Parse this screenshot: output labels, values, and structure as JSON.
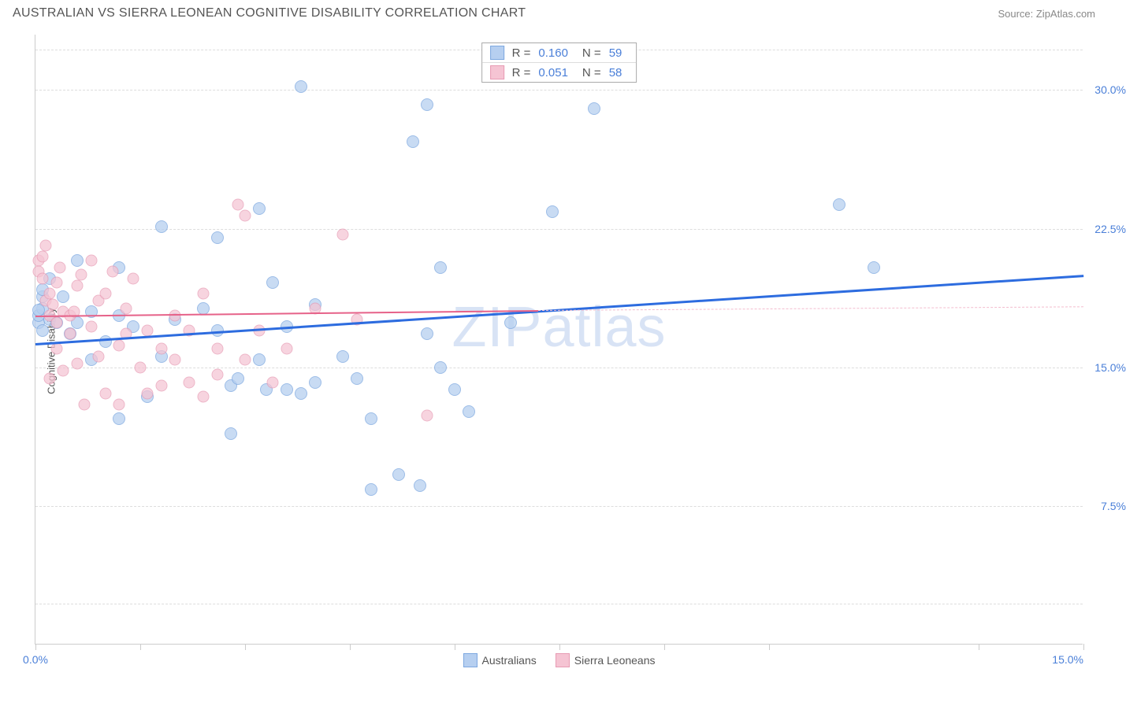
{
  "title": "AUSTRALIAN VS SIERRA LEONEAN COGNITIVE DISABILITY CORRELATION CHART",
  "source": "Source: ZipAtlas.com",
  "watermark": "ZIPatlas",
  "ylabel": "Cognitive Disability",
  "chart": {
    "type": "scatter",
    "background_color": "#ffffff",
    "grid_color": "#dddddd",
    "axis_color": "#cccccc",
    "xlim": [
      0,
      15
    ],
    "ylim": [
      0,
      33
    ],
    "xticks": [
      0,
      1.5,
      3,
      4.5,
      6,
      7.5,
      9,
      10.5,
      13.5,
      15
    ],
    "xlabels": [
      {
        "x": 0,
        "text": "0.0%"
      },
      {
        "x": 15,
        "text": "15.0%"
      }
    ],
    "yticks": [
      {
        "y": 7.5,
        "text": "7.5%"
      },
      {
        "y": 15.0,
        "text": "15.0%"
      },
      {
        "y": 22.5,
        "text": "22.5%"
      },
      {
        "y": 30.0,
        "text": "30.0%"
      }
    ],
    "gridlines_y": [
      2.2,
      7.5,
      15.0,
      22.5,
      30.0,
      32.2
    ],
    "series": [
      {
        "name": "Australians",
        "marker_fill": "#b6cff0",
        "marker_stroke": "#7da8e0",
        "marker_opacity": 0.75,
        "marker_size": 16,
        "trend": {
          "x1": 0,
          "y1": 16.3,
          "x2": 15,
          "y2": 20.0,
          "color": "#2d6cdf",
          "width": 2.5
        },
        "stats": {
          "R": "0.160",
          "N": "59"
        },
        "points": [
          [
            0.05,
            17.4
          ],
          [
            0.05,
            17.8
          ],
          [
            0.1,
            18.2
          ],
          [
            0.1,
            17.0
          ],
          [
            0.1,
            18.8
          ],
          [
            0.1,
            19.2
          ],
          [
            0.2,
            17.6
          ],
          [
            0.2,
            19.8
          ],
          [
            0.3,
            17.4
          ],
          [
            0.4,
            18.8
          ],
          [
            0.5,
            16.8
          ],
          [
            0.6,
            17.4
          ],
          [
            0.6,
            20.8
          ],
          [
            0.8,
            18.0
          ],
          [
            0.8,
            15.4
          ],
          [
            1.0,
            16.4
          ],
          [
            1.2,
            17.8
          ],
          [
            1.2,
            20.4
          ],
          [
            1.2,
            12.2
          ],
          [
            1.4,
            17.2
          ],
          [
            1.6,
            13.4
          ],
          [
            1.8,
            22.6
          ],
          [
            1.8,
            15.6
          ],
          [
            2.0,
            17.6
          ],
          [
            2.4,
            18.2
          ],
          [
            2.6,
            22.0
          ],
          [
            2.6,
            17.0
          ],
          [
            2.8,
            11.4
          ],
          [
            2.8,
            14.0
          ],
          [
            2.9,
            14.4
          ],
          [
            3.2,
            23.6
          ],
          [
            3.2,
            15.4
          ],
          [
            3.3,
            13.8
          ],
          [
            3.4,
            19.6
          ],
          [
            3.6,
            17.2
          ],
          [
            3.6,
            13.8
          ],
          [
            3.8,
            30.2
          ],
          [
            3.8,
            13.6
          ],
          [
            4.0,
            14.2
          ],
          [
            4.0,
            18.4
          ],
          [
            4.4,
            15.6
          ],
          [
            4.6,
            14.4
          ],
          [
            4.8,
            8.4
          ],
          [
            4.8,
            12.2
          ],
          [
            5.2,
            9.2
          ],
          [
            5.4,
            27.2
          ],
          [
            5.5,
            8.6
          ],
          [
            5.6,
            29.2
          ],
          [
            5.6,
            16.8
          ],
          [
            5.8,
            15.0
          ],
          [
            5.8,
            20.4
          ],
          [
            6.0,
            13.8
          ],
          [
            6.2,
            12.6
          ],
          [
            6.8,
            17.4
          ],
          [
            7.4,
            23.4
          ],
          [
            8.0,
            29.0
          ],
          [
            11.5,
            23.8
          ],
          [
            12.0,
            20.4
          ],
          [
            0.05,
            18.1
          ]
        ]
      },
      {
        "name": "Sierra Leoneans",
        "marker_fill": "#f5c4d3",
        "marker_stroke": "#e79bb4",
        "marker_opacity": 0.72,
        "marker_size": 15,
        "trend": {
          "x1": 0,
          "y1": 17.8,
          "x2": 7.2,
          "y2": 18.1,
          "color": "#e66289",
          "width": 2,
          "dash_x2": 15,
          "dash_y2": 18.3,
          "dash_color": "#f3bcce"
        },
        "stats": {
          "R": "0.051",
          "N": "58"
        },
        "points": [
          [
            0.05,
            20.8
          ],
          [
            0.05,
            20.2
          ],
          [
            0.1,
            21.0
          ],
          [
            0.1,
            19.8
          ],
          [
            0.15,
            21.6
          ],
          [
            0.15,
            18.6
          ],
          [
            0.2,
            17.8
          ],
          [
            0.2,
            19.0
          ],
          [
            0.2,
            14.4
          ],
          [
            0.25,
            18.4
          ],
          [
            0.3,
            16.0
          ],
          [
            0.3,
            19.6
          ],
          [
            0.35,
            20.4
          ],
          [
            0.4,
            18.0
          ],
          [
            0.4,
            14.8
          ],
          [
            0.5,
            17.8
          ],
          [
            0.5,
            16.8
          ],
          [
            0.55,
            18.0
          ],
          [
            0.6,
            19.4
          ],
          [
            0.6,
            15.2
          ],
          [
            0.65,
            20.0
          ],
          [
            0.7,
            13.0
          ],
          [
            0.8,
            20.8
          ],
          [
            0.8,
            17.2
          ],
          [
            0.9,
            18.6
          ],
          [
            0.9,
            15.6
          ],
          [
            1.0,
            13.6
          ],
          [
            1.0,
            19.0
          ],
          [
            1.1,
            20.2
          ],
          [
            1.2,
            16.2
          ],
          [
            1.2,
            13.0
          ],
          [
            1.3,
            16.8
          ],
          [
            1.3,
            18.2
          ],
          [
            1.4,
            19.8
          ],
          [
            1.5,
            15.0
          ],
          [
            1.6,
            17.0
          ],
          [
            1.6,
            13.6
          ],
          [
            1.8,
            16.0
          ],
          [
            1.8,
            14.0
          ],
          [
            2.0,
            17.8
          ],
          [
            2.0,
            15.4
          ],
          [
            2.2,
            17.0
          ],
          [
            2.2,
            14.2
          ],
          [
            2.4,
            13.4
          ],
          [
            2.4,
            19.0
          ],
          [
            2.6,
            14.6
          ],
          [
            2.6,
            16.0
          ],
          [
            2.9,
            23.8
          ],
          [
            3.0,
            23.2
          ],
          [
            3.0,
            15.4
          ],
          [
            3.2,
            17.0
          ],
          [
            3.4,
            14.2
          ],
          [
            3.6,
            16.0
          ],
          [
            4.0,
            18.2
          ],
          [
            4.4,
            22.2
          ],
          [
            4.6,
            17.6
          ],
          [
            5.6,
            12.4
          ],
          [
            0.3,
            17.4
          ]
        ]
      }
    ],
    "legend": [
      {
        "label": "Australians",
        "fill": "#b6cff0",
        "stroke": "#7da8e0"
      },
      {
        "label": "Sierra Leoneans",
        "fill": "#f5c4d3",
        "stroke": "#e79bb4"
      }
    ]
  }
}
